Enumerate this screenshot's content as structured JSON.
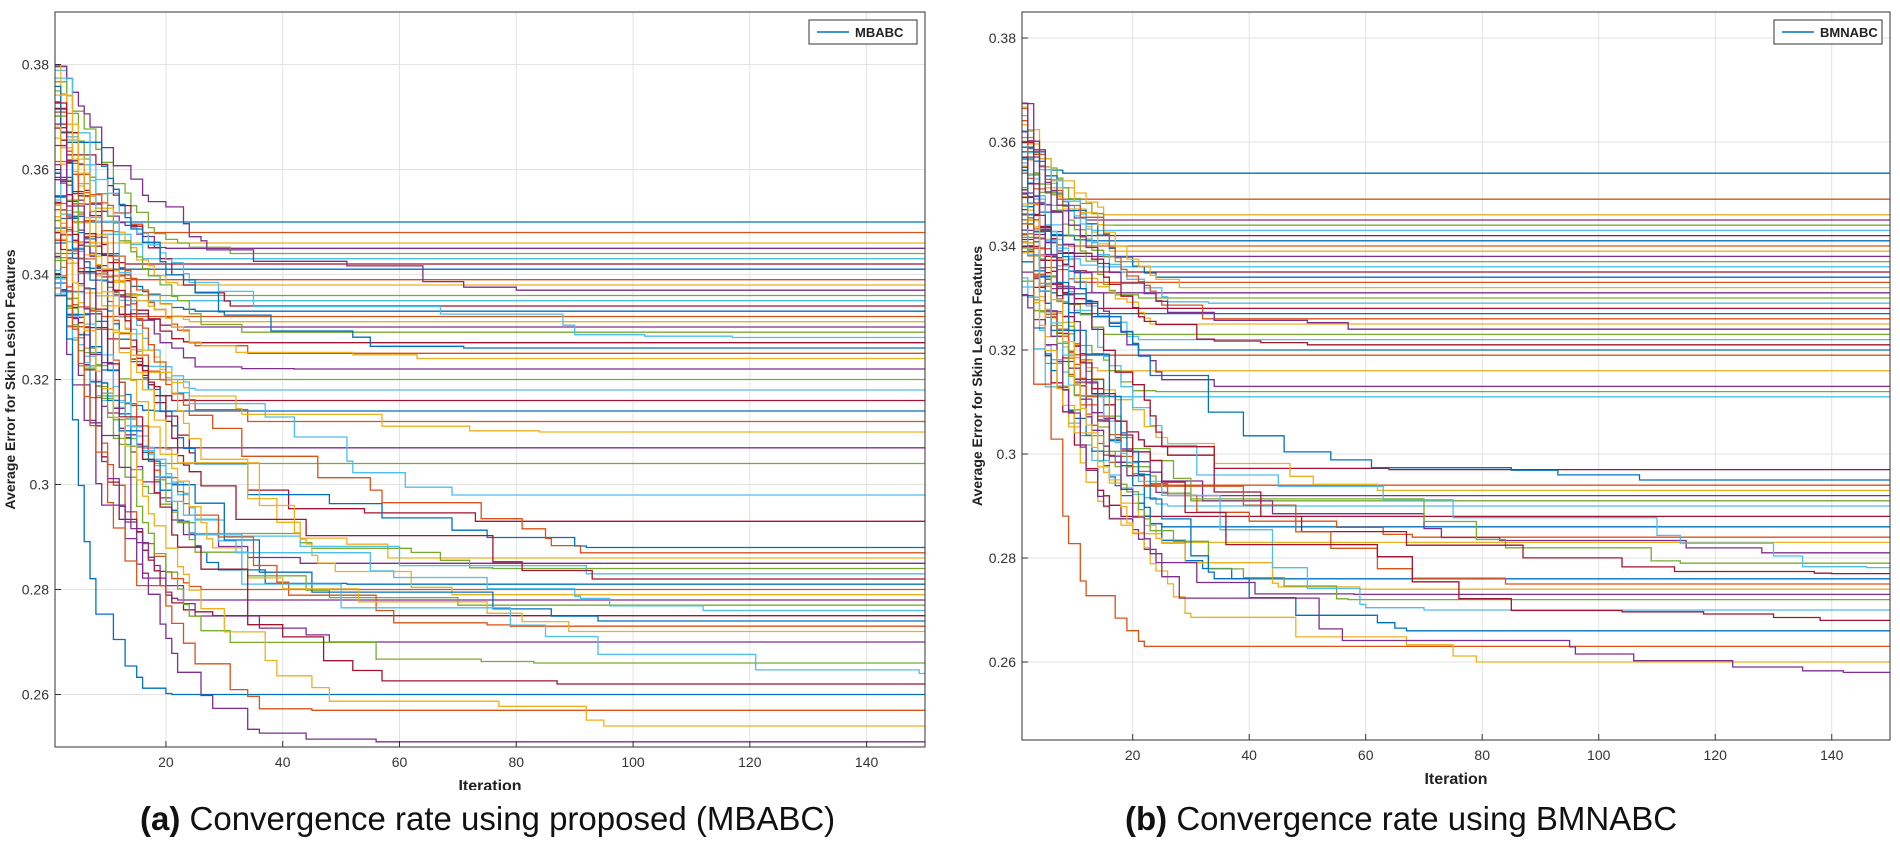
{
  "captions": {
    "a_prefix": "(a)",
    "a_text": "Convergence rate using proposed (MBABC)",
    "b_prefix": "(b)",
    "b_text": "Convergence rate using BMNABC"
  },
  "palette": [
    "#0072BD",
    "#D95319",
    "#EDB120",
    "#7E2F8E",
    "#77AC30",
    "#4DBEEE",
    "#A2142F"
  ],
  "chart_data": [
    {
      "type": "line",
      "title": "",
      "xlabel": "Iteration",
      "ylabel": "Average Error for Skin Lesion Features",
      "xlim": [
        1,
        150
      ],
      "ylim": [
        0.25,
        0.39
      ],
      "xticks": [
        20,
        40,
        60,
        80,
        100,
        120,
        140
      ],
      "yticks": [
        0.26,
        0.28,
        0.3,
        0.32,
        0.34,
        0.36,
        0.38
      ],
      "grid": true,
      "legend": {
        "position": "top-right",
        "entries": [
          "MBABC"
        ]
      },
      "series_summary": {
        "count": 70,
        "start_range": [
          0.335,
          0.38
        ],
        "final_values": [
          0.35,
          0.348,
          0.346,
          0.345,
          0.344,
          0.343,
          0.342,
          0.341,
          0.339,
          0.338,
          0.337,
          0.336,
          0.335,
          0.334,
          0.333,
          0.332,
          0.331,
          0.33,
          0.329,
          0.328,
          0.327,
          0.326,
          0.325,
          0.324,
          0.322,
          0.32,
          0.318,
          0.316,
          0.314,
          0.312,
          0.31,
          0.307,
          0.304,
          0.298,
          0.293,
          0.288,
          0.287,
          0.286,
          0.285,
          0.284,
          0.283,
          0.282,
          0.281,
          0.28,
          0.279,
          0.278,
          0.277,
          0.276,
          0.275,
          0.274,
          0.273,
          0.272,
          0.27,
          0.266,
          0.264,
          0.262,
          0.26,
          0.257,
          0.254,
          0.251
        ]
      }
    },
    {
      "type": "line",
      "title": "",
      "xlabel": "Iteration",
      "ylabel": "Average Error for Skin Lesion Features",
      "xlim": [
        1,
        150
      ],
      "ylim": [
        0.245,
        0.385
      ],
      "xticks": [
        20,
        40,
        60,
        80,
        100,
        120,
        140
      ],
      "yticks": [
        0.26,
        0.28,
        0.3,
        0.32,
        0.34,
        0.36,
        0.38
      ],
      "grid": true,
      "legend": {
        "position": "top-right",
        "entries": [
          "BMNABC"
        ]
      },
      "series_summary": {
        "count": 70,
        "start_range": [
          0.33,
          0.368
        ],
        "final_values": [
          0.354,
          0.349,
          0.346,
          0.345,
          0.344,
          0.343,
          0.342,
          0.341,
          0.34,
          0.339,
          0.338,
          0.337,
          0.336,
          0.335,
          0.334,
          0.333,
          0.332,
          0.331,
          0.33,
          0.329,
          0.328,
          0.327,
          0.326,
          0.325,
          0.324,
          0.323,
          0.322,
          0.321,
          0.32,
          0.319,
          0.316,
          0.313,
          0.312,
          0.311,
          0.297,
          0.295,
          0.294,
          0.293,
          0.292,
          0.291,
          0.29,
          0.288,
          0.286,
          0.284,
          0.283,
          0.281,
          0.279,
          0.278,
          0.277,
          0.276,
          0.275,
          0.274,
          0.273,
          0.272,
          0.27,
          0.268,
          0.266,
          0.263,
          0.26,
          0.258
        ]
      }
    }
  ]
}
